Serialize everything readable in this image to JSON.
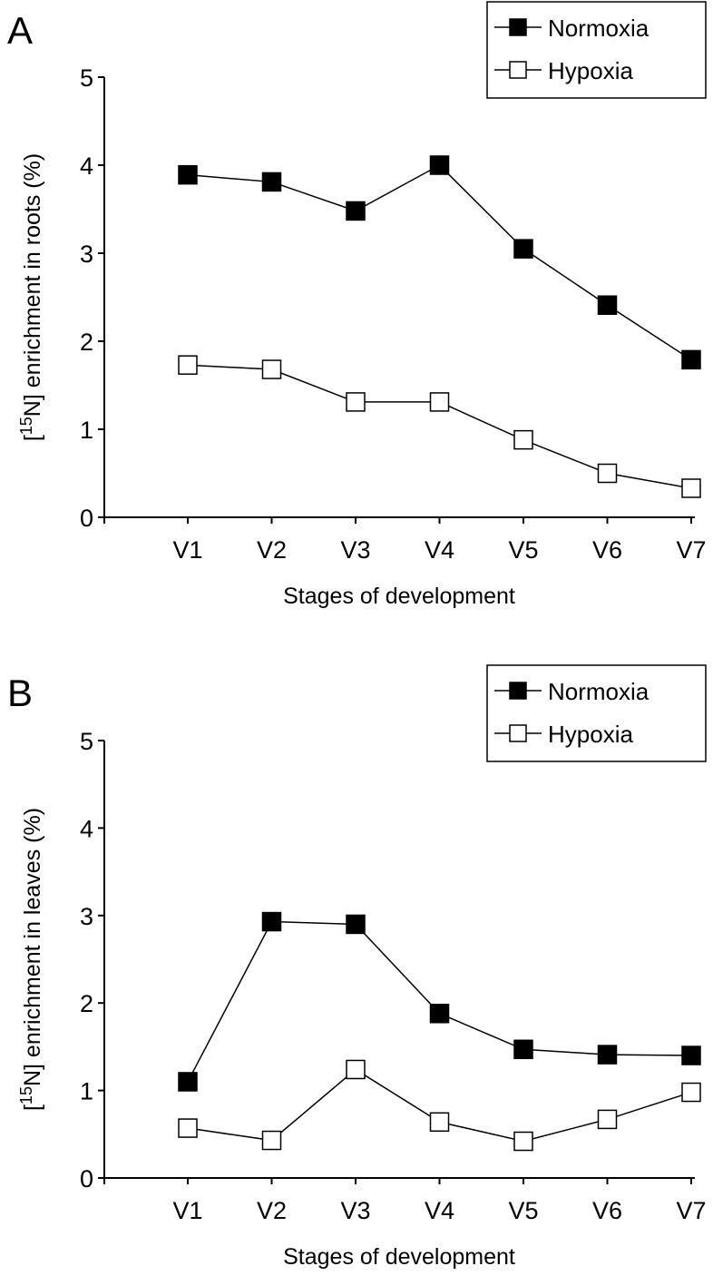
{
  "chart_data": [
    {
      "type": "line",
      "panel_label": "A",
      "title": "",
      "xlabel": "Stages of development",
      "ylabel_prefix": "[",
      "ylabel_sup": "15",
      "ylabel_suffix": "N] enrichment in roots (%)",
      "categories": [
        "V1",
        "V2",
        "V3",
        "V4",
        "V5",
        "V6",
        "V7"
      ],
      "ylim": [
        0,
        5
      ],
      "yticks": [
        "0",
        "1",
        "2",
        "3",
        "4",
        "5"
      ],
      "grid": false,
      "legend_position": "top-right",
      "series": [
        {
          "name": "Normoxia",
          "marker": "filled-square",
          "values": [
            3.89,
            3.81,
            3.48,
            4.0,
            3.05,
            2.41,
            1.79
          ]
        },
        {
          "name": "Hypoxia",
          "marker": "open-square",
          "values": [
            1.73,
            1.68,
            1.31,
            1.31,
            0.88,
            0.5,
            0.33
          ]
        }
      ]
    },
    {
      "type": "line",
      "panel_label": "B",
      "title": "",
      "xlabel": "Stages of development",
      "ylabel_prefix": "[",
      "ylabel_sup": "15",
      "ylabel_suffix": "N] enrichment in leaves (%)",
      "categories": [
        "V1",
        "V2",
        "V3",
        "V4",
        "V5",
        "V6",
        "V7"
      ],
      "ylim": [
        0,
        5
      ],
      "yticks": [
        "0",
        "1",
        "2",
        "3",
        "4",
        "5"
      ],
      "grid": false,
      "legend_position": "top-right",
      "series": [
        {
          "name": "Normoxia",
          "marker": "filled-square",
          "values": [
            1.1,
            2.93,
            2.9,
            1.88,
            1.47,
            1.41,
            1.4
          ]
        },
        {
          "name": "Hypoxia",
          "marker": "open-square",
          "values": [
            0.57,
            0.43,
            1.24,
            0.64,
            0.42,
            0.67,
            0.98
          ]
        }
      ]
    }
  ]
}
